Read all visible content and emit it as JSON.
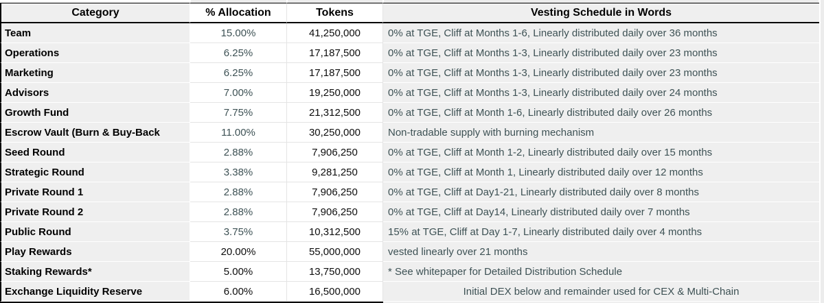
{
  "colors": {
    "accent_text": "#3d5154",
    "primary_text": "#000000",
    "gray_cell_bg": "#efefef",
    "white_cell_bg": "#ffffff",
    "gridline": "#e4e4e4",
    "table_border": "#000000"
  },
  "table": {
    "columns": [
      {
        "label": "Category"
      },
      {
        "label": "% Allocation"
      },
      {
        "label": "Tokens"
      },
      {
        "label": "Vesting Schedule in Words"
      }
    ],
    "rows": [
      {
        "category": "Team",
        "allocation": "15.00%",
        "tokens": "41,250,000",
        "vesting": "0% at TGE, Cliff at Months 1-6, Linearly distributed daily over 36 months",
        "allocation_color": "teal",
        "vesting_align": "left"
      },
      {
        "category": "Operations",
        "allocation": "6.25%",
        "tokens": "17,187,500",
        "vesting": "0% at TGE, Cliff at Months 1-3, Linearly distributed daily over 23 months",
        "allocation_color": "teal",
        "vesting_align": "left"
      },
      {
        "category": "Marketing",
        "allocation": "6.25%",
        "tokens": "17,187,500",
        "vesting": "0% at TGE, Cliff at Months 1-3, Linearly distributed daily over 23 months",
        "allocation_color": "teal",
        "vesting_align": "left"
      },
      {
        "category": "Advisors",
        "allocation": "7.00%",
        "tokens": "19,250,000",
        "vesting": "0% at TGE, Cliff at Months 1-3, Linearly distributed daily over 24 months",
        "allocation_color": "teal",
        "vesting_align": "left"
      },
      {
        "category": "Growth Fund",
        "allocation": "7.75%",
        "tokens": "21,312,500",
        "vesting": "0% at TGE, Cliff at Month 1-6, Linearly distributed daily over 26 months",
        "allocation_color": "teal",
        "vesting_align": "left"
      },
      {
        "category": "Escrow Vault (Burn & Buy-Back",
        "allocation": "11.00%",
        "tokens": "30,250,000",
        "vesting": "Non-tradable supply with burning mechanism",
        "allocation_color": "teal",
        "vesting_align": "left"
      },
      {
        "category": "Seed Round",
        "allocation": "2.88%",
        "tokens": "7,906,250",
        "vesting": "0% at TGE, Cliff at Month 1-2, Linearly distributed daily over 15 months",
        "allocation_color": "teal",
        "vesting_align": "left"
      },
      {
        "category": "Strategic Round",
        "allocation": "3.38%",
        "tokens": "9,281,250",
        "vesting": "0% at TGE, Cliff at Month 1, Linearly distributed daily over 12 months",
        "allocation_color": "teal",
        "vesting_align": "left"
      },
      {
        "category": "Private Round 1",
        "allocation": "2.88%",
        "tokens": "7,906,250",
        "vesting": "0% at TGE, Cliff at Day1-21, Linearly distributed daily over 8 months",
        "allocation_color": "teal",
        "vesting_align": "left"
      },
      {
        "category": "Private Round 2",
        "allocation": "2.88%",
        "tokens": "7,906,250",
        "vesting": "0% at TGE, Cliff at Day14, Linearly distributed daily over 7 months",
        "allocation_color": "teal",
        "vesting_align": "left"
      },
      {
        "category": "Public Round",
        "allocation": "3.75%",
        "tokens": "10,312,500",
        "vesting": "15% at TGE, Cliff at Day 1-7, Linearly distributed daily over 4 months",
        "allocation_color": "teal",
        "vesting_align": "left"
      },
      {
        "category": "Play Rewards",
        "allocation": "20.00%",
        "tokens": "55,000,000",
        "vesting": "vested linearly over 21 months",
        "allocation_color": "black",
        "vesting_align": "left"
      },
      {
        "category": "Staking Rewards*",
        "allocation": "5.00%",
        "tokens": "13,750,000",
        "vesting": "* See whitepaper for Detailed Distribution Schedule",
        "allocation_color": "black",
        "vesting_align": "left"
      },
      {
        "category": "Exchange Liquidity Reserve",
        "allocation": "6.00%",
        "tokens": "16,500,000",
        "vesting": "Initial DEX below and remainder used for CEX & Multi-Chain",
        "allocation_color": "black",
        "vesting_align": "center"
      }
    ]
  }
}
